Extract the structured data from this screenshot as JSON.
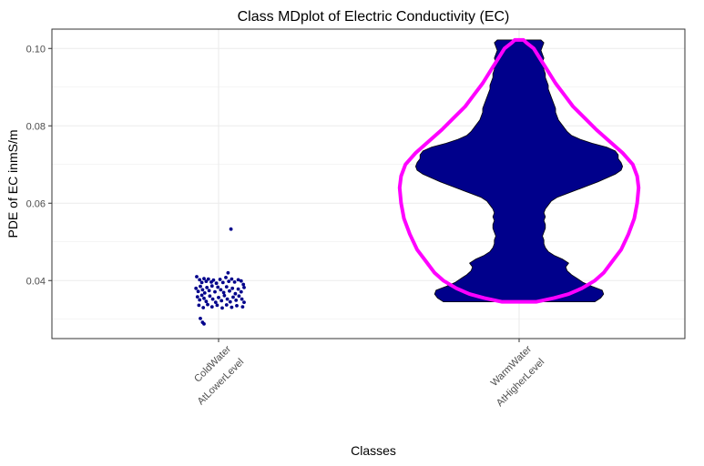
{
  "chart_data": {
    "type": "violin",
    "title": "Class MDplot of Electric Conductivity (EC)",
    "xlabel": "Classes",
    "ylabel": "PDE of EC inmS/m",
    "ylim": [
      0.025,
      0.105
    ],
    "yticks": [
      0.04,
      0.06,
      0.08,
      0.1
    ],
    "ytick_labels": [
      "0.04",
      "0.06",
      "0.08",
      "0.10"
    ],
    "grid": true,
    "categories": [
      "ColdWater\nAtLowerLevel",
      "WarmWater\nAtHigherLevel"
    ],
    "category_lines": [
      [
        "ColdWater",
        "AtLowerLevel"
      ],
      [
        "WarmWater",
        "AtHigherLevel"
      ]
    ],
    "colors": {
      "density_fill": "#00008B",
      "density_outline": "#000000",
      "overlay_line": "#FF00FF",
      "points": "#00008B",
      "grid": "#ebebeb",
      "panel_border": "#333333"
    },
    "series": [
      {
        "kind": "points",
        "category_index": 0,
        "points": [
          [
            -0.3,
            0.041
          ],
          [
            -0.26,
            0.0402
          ],
          [
            -0.23,
            0.0395
          ],
          [
            -0.2,
            0.0405
          ],
          [
            -0.17,
            0.0398
          ],
          [
            -0.14,
            0.0404
          ],
          [
            -0.1,
            0.0396
          ],
          [
            -0.07,
            0.0401
          ],
          [
            -0.03,
            0.0393
          ],
          [
            0.02,
            0.0403
          ],
          [
            0.06,
            0.0395
          ],
          [
            0.1,
            0.0408
          ],
          [
            0.14,
            0.0398
          ],
          [
            0.18,
            0.0404
          ],
          [
            0.22,
            0.0396
          ],
          [
            0.27,
            0.0402
          ],
          [
            0.31,
            0.0399
          ],
          [
            0.34,
            0.039
          ],
          [
            -0.31,
            0.038
          ],
          [
            -0.28,
            0.0372
          ],
          [
            -0.25,
            0.0385
          ],
          [
            -0.22,
            0.0376
          ],
          [
            -0.19,
            0.0368
          ],
          [
            -0.16,
            0.0382
          ],
          [
            -0.13,
            0.0374
          ],
          [
            -0.09,
            0.0386
          ],
          [
            -0.05,
            0.0371
          ],
          [
            -0.01,
            0.0383
          ],
          [
            0.03,
            0.0376
          ],
          [
            0.07,
            0.0369
          ],
          [
            0.11,
            0.0384
          ],
          [
            0.15,
            0.0373
          ],
          [
            0.19,
            0.038
          ],
          [
            0.23,
            0.0366
          ],
          [
            0.27,
            0.0378
          ],
          [
            0.31,
            0.0371
          ],
          [
            0.35,
            0.0382
          ],
          [
            -0.29,
            0.0358
          ],
          [
            -0.26,
            0.035
          ],
          [
            -0.23,
            0.0362
          ],
          [
            -0.2,
            0.0354
          ],
          [
            -0.17,
            0.0346
          ],
          [
            -0.12,
            0.036
          ],
          [
            -0.08,
            0.0352
          ],
          [
            -0.04,
            0.0344
          ],
          [
            0.0,
            0.0356
          ],
          [
            0.04,
            0.0348
          ],
          [
            0.08,
            0.0361
          ],
          [
            0.12,
            0.0352
          ],
          [
            0.16,
            0.0345
          ],
          [
            0.2,
            0.0357
          ],
          [
            0.24,
            0.0349
          ],
          [
            0.28,
            0.036
          ],
          [
            0.32,
            0.0352
          ],
          [
            0.35,
            0.0344
          ],
          [
            -0.27,
            0.0336
          ],
          [
            -0.21,
            0.033
          ],
          [
            -0.15,
            0.0338
          ],
          [
            -0.09,
            0.0332
          ],
          [
            -0.02,
            0.0336
          ],
          [
            0.05,
            0.0329
          ],
          [
            0.11,
            0.0337
          ],
          [
            0.18,
            0.0331
          ],
          [
            0.25,
            0.0335
          ],
          [
            0.33,
            0.0332
          ],
          [
            -0.25,
            0.0302
          ],
          [
            -0.22,
            0.0292
          ],
          [
            -0.2,
            0.0288
          ],
          [
            0.13,
            0.042
          ],
          [
            0.17,
            0.0533
          ]
        ]
      },
      {
        "kind": "density",
        "category_index": 1,
        "profile": [
          [
            0.0345,
            0.52
          ],
          [
            0.0355,
            0.56
          ],
          [
            0.0365,
            0.58
          ],
          [
            0.0375,
            0.57
          ],
          [
            0.0385,
            0.5
          ],
          [
            0.0395,
            0.44
          ],
          [
            0.0405,
            0.4
          ],
          [
            0.0415,
            0.36
          ],
          [
            0.0425,
            0.33
          ],
          [
            0.0435,
            0.32
          ],
          [
            0.0445,
            0.34
          ],
          [
            0.0455,
            0.3
          ],
          [
            0.0465,
            0.24
          ],
          [
            0.0475,
            0.2
          ],
          [
            0.0485,
            0.18
          ],
          [
            0.0495,
            0.17
          ],
          [
            0.0505,
            0.17
          ],
          [
            0.0515,
            0.16
          ],
          [
            0.0525,
            0.17
          ],
          [
            0.0535,
            0.18
          ],
          [
            0.0545,
            0.18
          ],
          [
            0.0555,
            0.17
          ],
          [
            0.0565,
            0.18
          ],
          [
            0.0575,
            0.17
          ],
          [
            0.0585,
            0.18
          ],
          [
            0.0595,
            0.2
          ],
          [
            0.0605,
            0.22
          ],
          [
            0.0615,
            0.26
          ],
          [
            0.0625,
            0.33
          ],
          [
            0.0635,
            0.4
          ],
          [
            0.0645,
            0.47
          ],
          [
            0.0655,
            0.54
          ],
          [
            0.0665,
            0.6
          ],
          [
            0.0675,
            0.66
          ],
          [
            0.0685,
            0.7
          ],
          [
            0.0695,
            0.71
          ],
          [
            0.0705,
            0.7
          ],
          [
            0.0715,
            0.68
          ],
          [
            0.0725,
            0.68
          ],
          [
            0.0735,
            0.66
          ],
          [
            0.0745,
            0.6
          ],
          [
            0.0755,
            0.5
          ],
          [
            0.0765,
            0.42
          ],
          [
            0.0775,
            0.36
          ],
          [
            0.0785,
            0.33
          ],
          [
            0.0795,
            0.31
          ],
          [
            0.0805,
            0.29
          ],
          [
            0.0815,
            0.27
          ],
          [
            0.0825,
            0.26
          ],
          [
            0.0835,
            0.25
          ],
          [
            0.0845,
            0.25
          ],
          [
            0.0855,
            0.24
          ],
          [
            0.0865,
            0.23
          ],
          [
            0.0875,
            0.22
          ],
          [
            0.0885,
            0.21
          ],
          [
            0.0895,
            0.2
          ],
          [
            0.0905,
            0.2
          ],
          [
            0.0915,
            0.19
          ],
          [
            0.0925,
            0.18
          ],
          [
            0.0935,
            0.18
          ],
          [
            0.0945,
            0.17
          ],
          [
            0.0955,
            0.17
          ],
          [
            0.0965,
            0.16
          ],
          [
            0.0975,
            0.17
          ],
          [
            0.0985,
            0.16
          ],
          [
            0.0995,
            0.15
          ],
          [
            0.1005,
            0.16
          ],
          [
            0.1015,
            0.17
          ],
          [
            0.1022,
            0.15
          ]
        ]
      },
      {
        "kind": "overlay",
        "category_index": 1,
        "profile": [
          [
            0.0345,
            0.12
          ],
          [
            0.0355,
            0.24
          ],
          [
            0.0365,
            0.34
          ],
          [
            0.038,
            0.43
          ],
          [
            0.04,
            0.52
          ],
          [
            0.042,
            0.58
          ],
          [
            0.045,
            0.64
          ],
          [
            0.048,
            0.7
          ],
          [
            0.052,
            0.75
          ],
          [
            0.056,
            0.79
          ],
          [
            0.06,
            0.81
          ],
          [
            0.064,
            0.82
          ],
          [
            0.067,
            0.81
          ],
          [
            0.07,
            0.78
          ],
          [
            0.073,
            0.71
          ],
          [
            0.076,
            0.62
          ],
          [
            0.079,
            0.53
          ],
          [
            0.082,
            0.45
          ],
          [
            0.085,
            0.37
          ],
          [
            0.088,
            0.31
          ],
          [
            0.091,
            0.25
          ],
          [
            0.094,
            0.2
          ],
          [
            0.097,
            0.15
          ],
          [
            0.1,
            0.1
          ],
          [
            0.1015,
            0.05
          ],
          [
            0.1022,
            0.03
          ]
        ]
      }
    ]
  }
}
